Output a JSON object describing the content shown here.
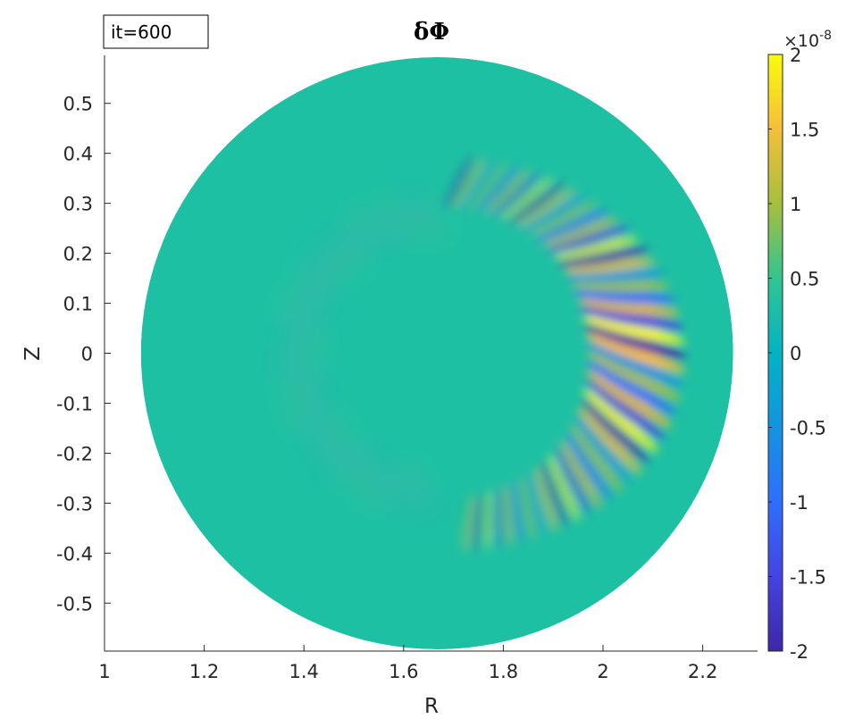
{
  "chart_data": {
    "type": "heatmap",
    "title": "δΦ",
    "xlabel": "R",
    "ylabel": "Z",
    "xlim": [
      1,
      2.31
    ],
    "ylim": [
      -0.596,
      0.596
    ],
    "x_ticks": [
      "1",
      "1.2",
      "1.4",
      "1.6",
      "1.8",
      "2",
      "2.2"
    ],
    "x_tick_values": [
      1,
      1.2,
      1.4,
      1.6,
      1.8,
      2,
      2.2
    ],
    "y_ticks": [
      "0.5",
      "0.4",
      "0.3",
      "0.2",
      "0.1",
      "0",
      "-0.1",
      "-0.2",
      "-0.3",
      "-0.4",
      "-0.5"
    ],
    "y_tick_values": [
      0.5,
      0.4,
      0.3,
      0.2,
      0.1,
      0,
      -0.1,
      -0.2,
      -0.3,
      -0.4,
      -0.5
    ],
    "colorbar": {
      "colormap": "parula",
      "range": [
        -2e-08,
        2e-08
      ],
      "ticks": [
        "2",
        "1.5",
        "1",
        "0.5",
        "0",
        "-0.5",
        "-1",
        "-1.5",
        "-2"
      ],
      "tick_values": [
        2,
        1.5,
        1,
        0.5,
        0,
        -0.5,
        -1,
        -1.5,
        -2
      ],
      "multiplier_base": "×10",
      "multiplier_exponent": "-8"
    },
    "annotation": "it=600",
    "domain": {
      "shape": "circle",
      "center_R": 1.667,
      "center_Z": 0,
      "radius": 0.594
    },
    "grid": false
  },
  "colors": {
    "background_field": "#1ec0a3",
    "positive_peak": "#f9fb0e",
    "negative_peak": "#3e26a8",
    "axis": "#262626"
  }
}
